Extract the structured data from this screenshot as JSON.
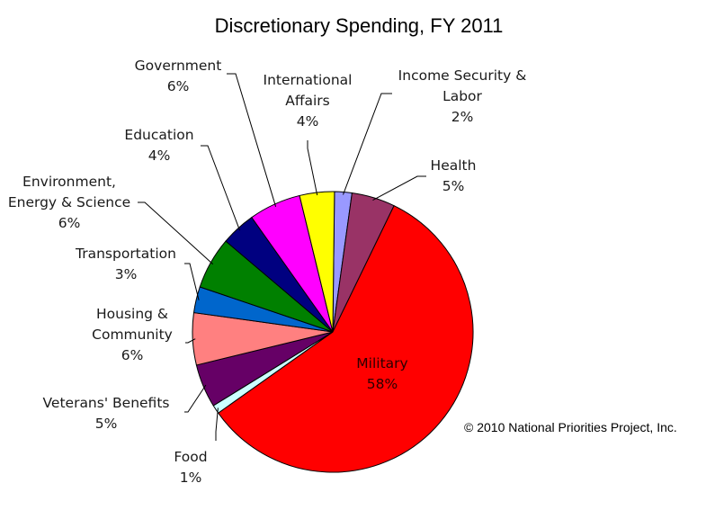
{
  "chart_data": {
    "type": "pie",
    "title": "Discretionary Spending, FY 2011",
    "credit": "© 2010 National Priorities Project, Inc.",
    "slices": [
      {
        "label": [
          "Income Security &",
          "Labor"
        ],
        "pct_text": "2%",
        "value": 2,
        "color": "#9999ff"
      },
      {
        "label": [
          "Health"
        ],
        "pct_text": "5%",
        "value": 5,
        "color": "#993366"
      },
      {
        "label": [
          "Military"
        ],
        "pct_text": "58%",
        "value": 58,
        "color": "#ff0000"
      },
      {
        "label": [
          "Food"
        ],
        "pct_text": "1%",
        "value": 1,
        "color": "#ccffff"
      },
      {
        "label": [
          "Veterans' Benefits"
        ],
        "pct_text": "5%",
        "value": 5,
        "color": "#660066"
      },
      {
        "label": [
          "Housing &",
          "Community"
        ],
        "pct_text": "6%",
        "value": 6,
        "color": "#ff8080"
      },
      {
        "label": [
          "Transportation"
        ],
        "pct_text": "3%",
        "value": 3,
        "color": "#0066cc"
      },
      {
        "label": [
          "Environment,",
          "Energy & Science"
        ],
        "pct_text": "6%",
        "value": 6,
        "color": "#008000"
      },
      {
        "label": [
          "Education"
        ],
        "pct_text": "4%",
        "value": 4,
        "color": "#000080"
      },
      {
        "label": [
          "Government"
        ],
        "pct_text": "6%",
        "value": 6,
        "color": "#ff00ff"
      },
      {
        "label": [
          "International",
          "Affairs"
        ],
        "pct_text": "4%",
        "value": 4,
        "color": "#ffff00"
      }
    ]
  }
}
